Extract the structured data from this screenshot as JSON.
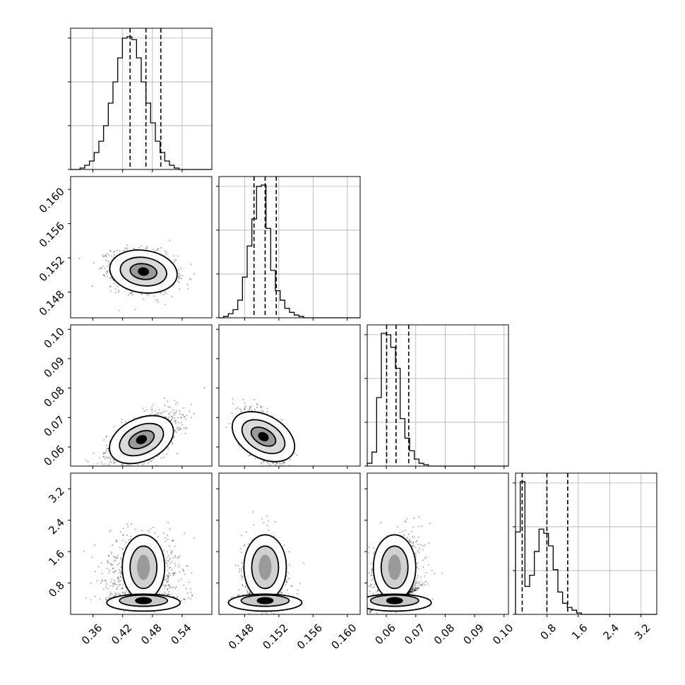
{
  "chart_data": {
    "type": "corner",
    "n_params": 4,
    "params": [
      {
        "range": [
          0.315,
          0.6
        ],
        "ticks": [
          0.36,
          0.42,
          0.48,
          0.54
        ],
        "tick_labels": [
          "0.36",
          "0.42",
          "0.48",
          "0.54"
        ],
        "hist_bin_edges": [
          0.315,
          0.3245,
          0.334,
          0.3435,
          0.353,
          0.3625,
          0.372,
          0.3815,
          0.391,
          0.4005,
          0.41,
          0.4195,
          0.429,
          0.4385,
          0.448,
          0.4575,
          0.467,
          0.4765,
          0.486,
          0.4955,
          0.505,
          0.5145,
          0.524,
          0.5335,
          0.543,
          0.5525,
          0.562,
          0.5715,
          0.581,
          0.5905,
          0.6
        ],
        "hist_counts": [
          0,
          0,
          1,
          3,
          6,
          12,
          20,
          31,
          47,
          62,
          79,
          93,
          94,
          92,
          79,
          62,
          47,
          33,
          20,
          12,
          6,
          3,
          1,
          0,
          0,
          0,
          0,
          0,
          0,
          0
        ],
        "quantiles": [
          0.435,
          0.467,
          0.497
        ]
      },
      {
        "range": [
          0.145,
          0.1615
        ],
        "ticks": [
          0.148,
          0.152,
          0.156,
          0.16
        ],
        "tick_labels": [
          "0.148",
          "0.152",
          "0.156",
          "0.160"
        ],
        "hist_bin_edges": [
          0.145,
          0.14555,
          0.1461,
          0.14665,
          0.1472,
          0.14775,
          0.1483,
          0.14885,
          0.1494,
          0.14995,
          0.1505,
          0.15105,
          0.1516,
          0.15215,
          0.1527,
          0.15325,
          0.1538,
          0.15435,
          0.1549,
          0.15545,
          0.156,
          0.15655,
          0.1571,
          0.15765,
          0.1582,
          0.15875,
          0.1593,
          0.15985,
          0.1604,
          0.16095,
          0.1615
        ],
        "hist_counts": [
          0,
          1,
          3,
          6,
          13,
          30,
          53,
          73,
          97,
          98,
          66,
          35,
          20,
          13,
          7,
          4,
          2,
          1,
          0,
          0,
          0,
          0,
          0,
          0,
          0,
          0,
          0,
          0,
          0,
          0
        ],
        "quantiles": [
          0.1491,
          0.1504,
          0.1517
        ]
      },
      {
        "range": [
          0.0535,
          0.1015
        ],
        "ticks": [
          0.06,
          0.07,
          0.08,
          0.09,
          0.1
        ],
        "tick_labels": [
          "0.06",
          "0.07",
          "0.08",
          "0.09",
          "0.10"
        ],
        "hist_bin_edges": [
          0.0535,
          0.0551,
          0.0567,
          0.0583,
          0.0599,
          0.0615,
          0.0631,
          0.0647,
          0.0663,
          0.0679,
          0.0695,
          0.0711,
          0.0727,
          0.0743,
          0.0759,
          0.0775,
          0.0791,
          0.0807,
          0.0823,
          0.0839,
          0.0855,
          0.0871,
          0.0887,
          0.0903,
          0.0919,
          0.0935,
          0.0951,
          0.0967,
          0.0983,
          0.0999,
          0.1015
        ],
        "hist_counts": [
          2,
          10,
          49,
          95,
          94,
          85,
          70,
          34,
          20,
          11,
          5,
          2,
          1,
          0,
          0,
          0,
          0,
          0,
          0,
          0,
          0,
          0,
          0,
          0,
          0,
          0,
          0,
          0,
          0,
          0
        ],
        "quantiles": [
          0.0601,
          0.0633,
          0.0676
        ]
      },
      {
        "range": [
          0.0,
          3.6
        ],
        "ticks": [
          0.8,
          1.6,
          2.4,
          3.2
        ],
        "tick_labels": [
          "0.8",
          "1.6",
          "2.4",
          "3.2"
        ],
        "hist_bin_edges": [
          0.0,
          0.12,
          0.24,
          0.36,
          0.48,
          0.6,
          0.72,
          0.84,
          0.96,
          1.08,
          1.2,
          1.32,
          1.44,
          1.56,
          1.68,
          1.8,
          1.92,
          2.04,
          2.16,
          2.28,
          2.4,
          2.52,
          2.64,
          2.76,
          2.88,
          3.0,
          3.12,
          3.24,
          3.36,
          3.48,
          3.6
        ],
        "hist_counts": [
          59,
          95,
          20,
          28,
          45,
          61,
          58,
          49,
          32,
          16,
          8,
          5,
          3,
          1,
          0,
          0,
          0,
          0,
          0,
          0,
          0,
          0,
          0,
          0,
          0,
          0,
          0,
          0,
          0,
          0
        ],
        "quantiles": [
          0.17,
          0.8,
          1.33
        ]
      }
    ],
    "pairs": [
      {
        "x": 0,
        "y": 1,
        "center": [
          0.462,
          0.1504
        ],
        "spread": [
          0.032,
          0.0012
        ]
      },
      {
        "x": 0,
        "y": 2,
        "center": [
          0.458,
          0.0625
        ],
        "spread": [
          0.035,
          0.0045
        ]
      },
      {
        "x": 1,
        "y": 2,
        "center": [
          0.1502,
          0.0635
        ],
        "spread": [
          0.0012,
          0.0042
        ]
      },
      {
        "x": 0,
        "y": 3,
        "center": [
          0.462,
          1.05
        ],
        "spread": [
          0.035,
          0.75
        ]
      },
      {
        "x": 1,
        "y": 3,
        "center": [
          0.1504,
          1.05
        ],
        "spread": [
          0.0012,
          0.75
        ]
      },
      {
        "x": 2,
        "y": 3,
        "center": [
          0.0628,
          1.05
        ],
        "spread": [
          0.0042,
          0.75
        ]
      }
    ],
    "grid": true,
    "title": "",
    "xlabel": "",
    "ylabel": ""
  }
}
